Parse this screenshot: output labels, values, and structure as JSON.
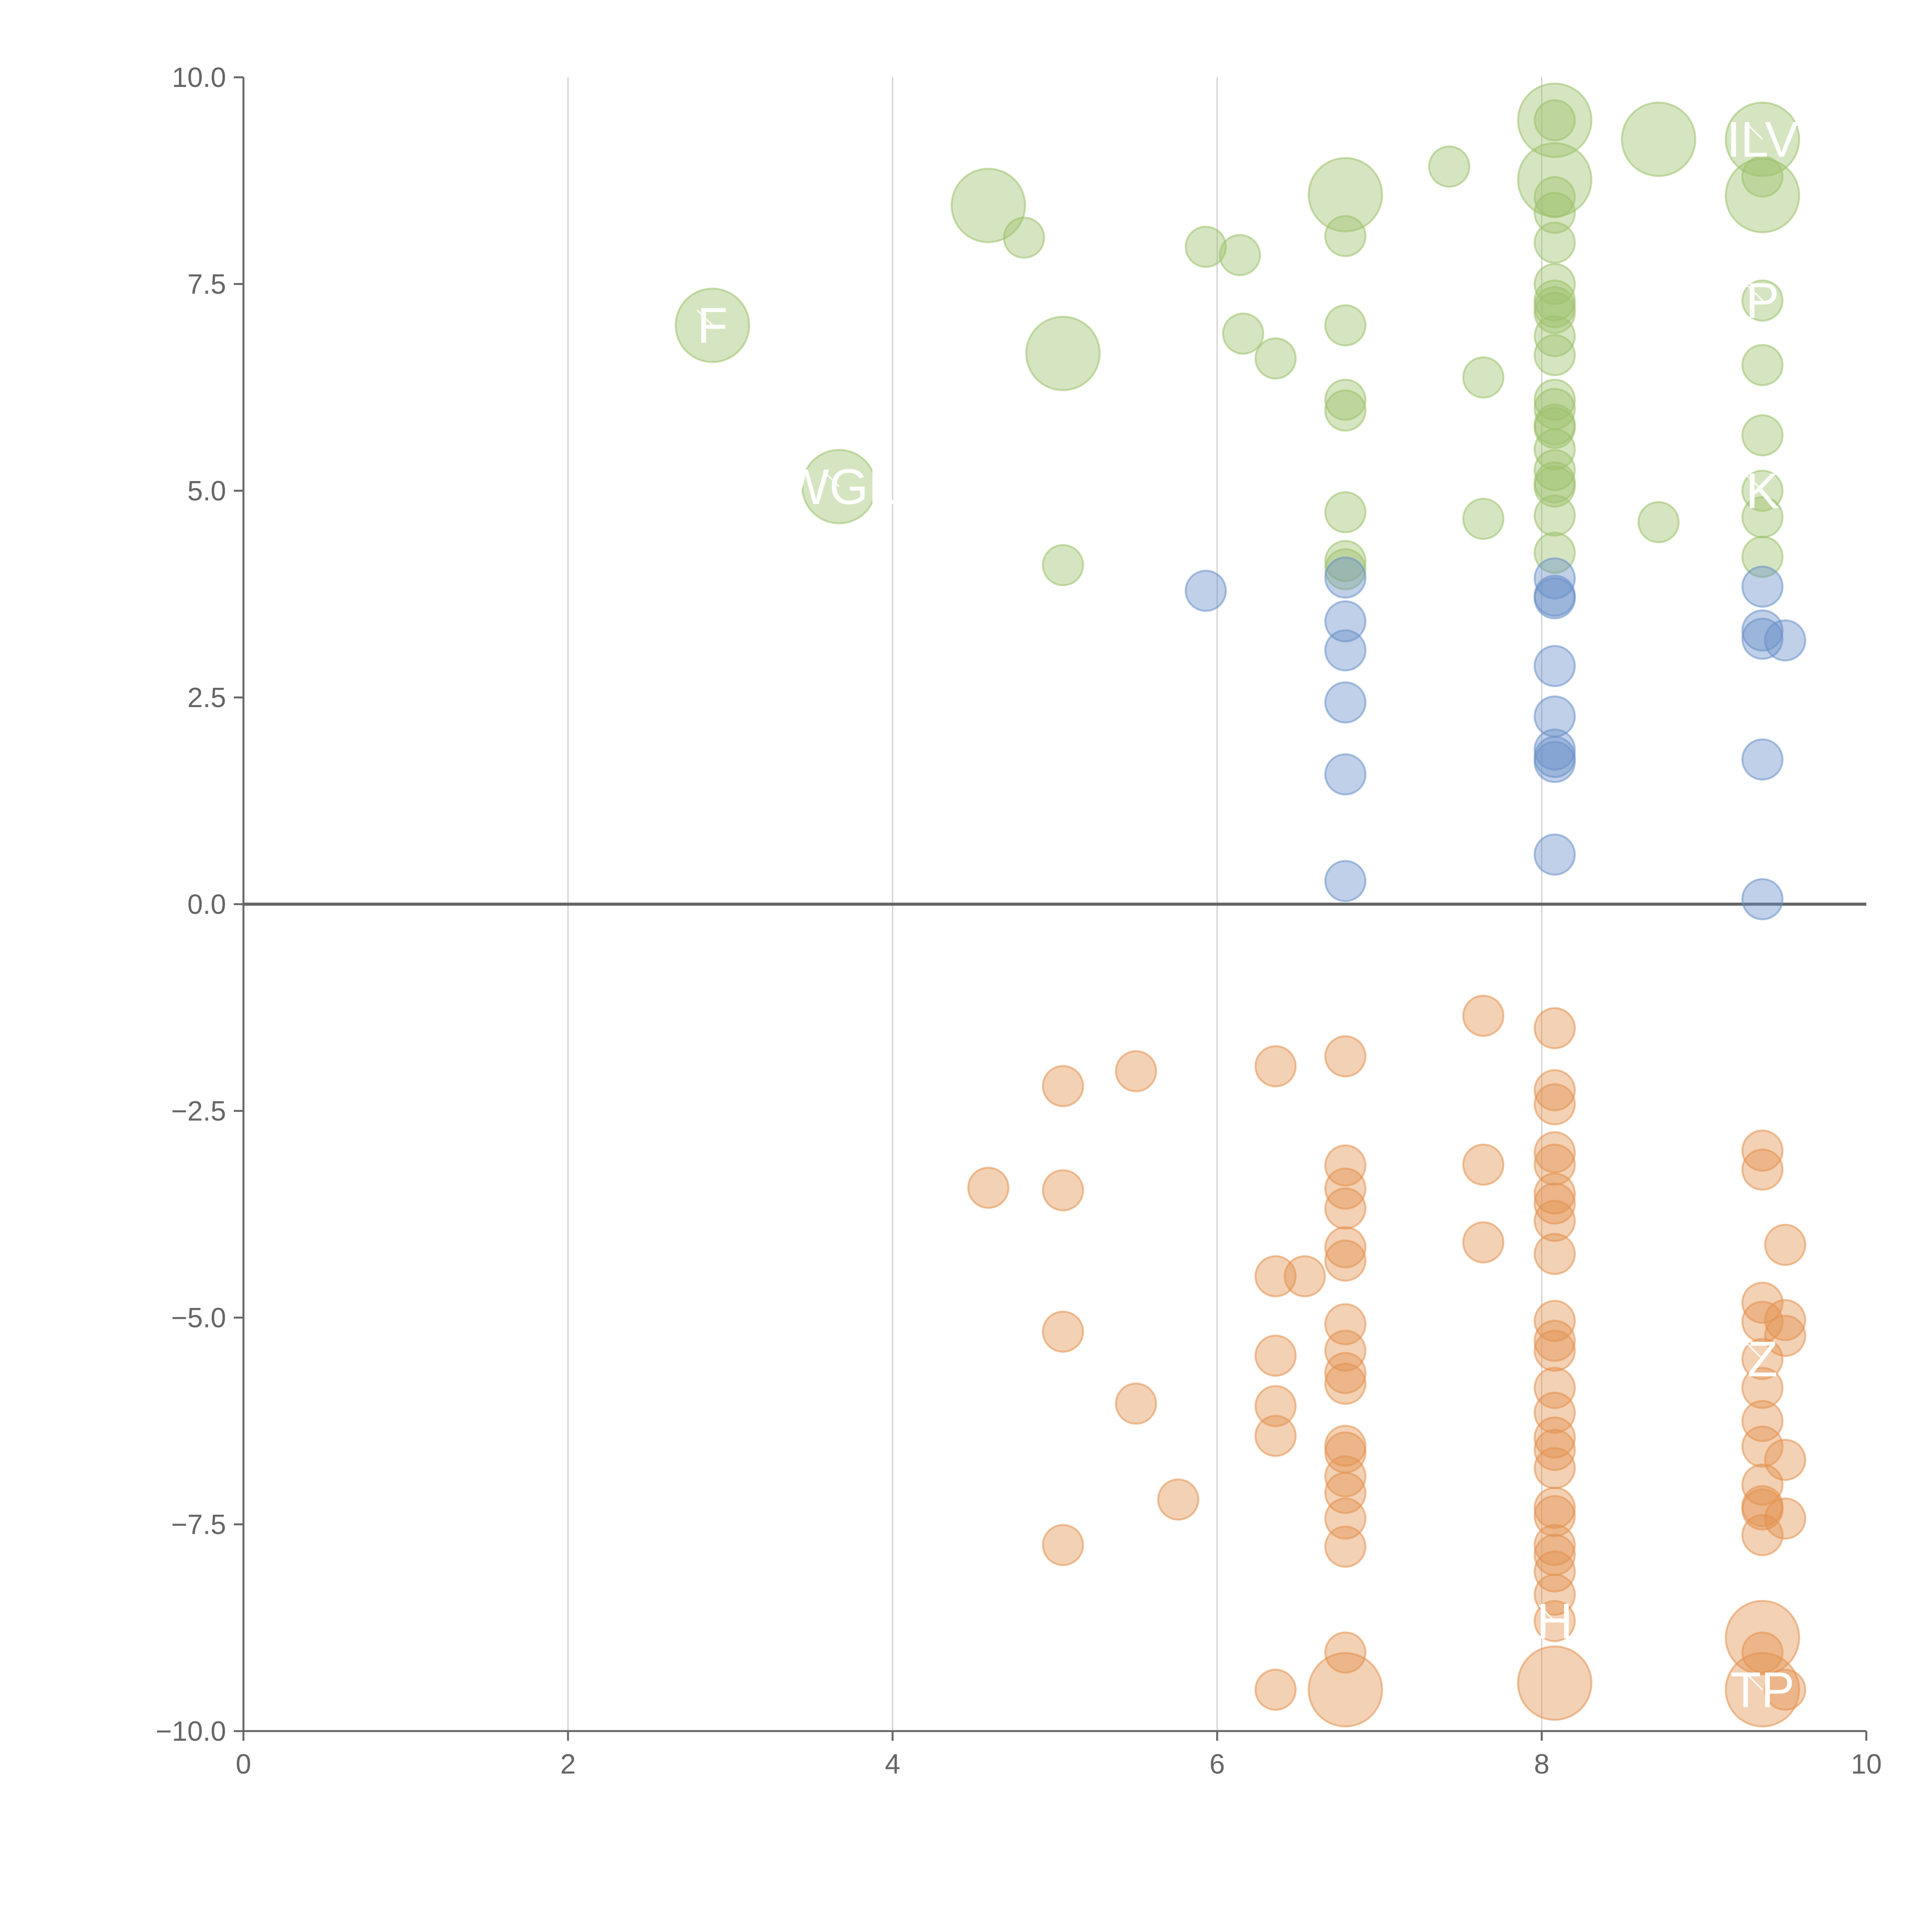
{
  "chart_data": {
    "type": "scatter",
    "title": "",
    "xlabel": "",
    "ylabel": "",
    "xlim": [
      0,
      10
    ],
    "ylim": [
      -10,
      10
    ],
    "grid": "vertical",
    "x_ticks": [
      "0",
      "2",
      "4",
      "6",
      "8",
      "10"
    ],
    "y_ticks": [
      "10.0",
      "7.5",
      "5.0",
      "2.5",
      "0.0",
      "−2.5",
      "−5.0",
      "−7.5",
      "−10.0"
    ],
    "series": [
      {
        "name": "green",
        "color": "#9dc16b",
        "points": [
          {
            "x": 2.89,
            "y": 7.0,
            "size": "large",
            "label": "F"
          },
          {
            "x": 3.67,
            "y": 5.05,
            "size": "large",
            "label": "WGL"
          },
          {
            "x": 4.59,
            "y": 8.45,
            "size": "large"
          },
          {
            "x": 4.81,
            "y": 8.06,
            "size": "small"
          },
          {
            "x": 5.05,
            "y": 6.66,
            "size": "large"
          },
          {
            "x": 5.05,
            "y": 4.1,
            "size": "small"
          },
          {
            "x": 5.93,
            "y": 7.95,
            "size": "small"
          },
          {
            "x": 6.14,
            "y": 7.85,
            "size": "small"
          },
          {
            "x": 6.16,
            "y": 6.9,
            "size": "small"
          },
          {
            "x": 6.36,
            "y": 6.6,
            "size": "small"
          },
          {
            "x": 6.79,
            "y": 8.58,
            "size": "large"
          },
          {
            "x": 6.79,
            "y": 8.08,
            "size": "small"
          },
          {
            "x": 6.79,
            "y": 7.0,
            "size": "small"
          },
          {
            "x": 6.79,
            "y": 6.1,
            "size": "small"
          },
          {
            "x": 6.79,
            "y": 5.97,
            "size": "small"
          },
          {
            "x": 6.79,
            "y": 4.74,
            "size": "small"
          },
          {
            "x": 6.79,
            "y": 4.15,
            "size": "small"
          },
          {
            "x": 6.79,
            "y": 4.05,
            "size": "small"
          },
          {
            "x": 7.43,
            "y": 8.92,
            "size": "small"
          },
          {
            "x": 7.64,
            "y": 6.37,
            "size": "small"
          },
          {
            "x": 7.64,
            "y": 4.66,
            "size": "small"
          },
          {
            "x": 8.08,
            "y": 9.48,
            "size": "large"
          },
          {
            "x": 8.08,
            "y": 9.48,
            "size": "small"
          },
          {
            "x": 8.08,
            "y": 8.76,
            "size": "large"
          },
          {
            "x": 8.08,
            "y": 8.55,
            "size": "small"
          },
          {
            "x": 8.08,
            "y": 8.36,
            "size": "small"
          },
          {
            "x": 8.08,
            "y": 8.0,
            "size": "small"
          },
          {
            "x": 8.08,
            "y": 7.5,
            "size": "small"
          },
          {
            "x": 8.08,
            "y": 7.3,
            "size": "small"
          },
          {
            "x": 8.08,
            "y": 7.22,
            "size": "small"
          },
          {
            "x": 8.08,
            "y": 7.15,
            "size": "small"
          },
          {
            "x": 8.08,
            "y": 6.87,
            "size": "small"
          },
          {
            "x": 8.08,
            "y": 6.64,
            "size": "small"
          },
          {
            "x": 8.08,
            "y": 6.1,
            "size": "small"
          },
          {
            "x": 8.08,
            "y": 5.99,
            "size": "small"
          },
          {
            "x": 8.08,
            "y": 5.8,
            "size": "small"
          },
          {
            "x": 8.08,
            "y": 5.76,
            "size": "small"
          },
          {
            "x": 8.08,
            "y": 5.5,
            "size": "small"
          },
          {
            "x": 8.08,
            "y": 5.25,
            "size": "small"
          },
          {
            "x": 8.08,
            "y": 5.1,
            "size": "small"
          },
          {
            "x": 8.08,
            "y": 5.05,
            "size": "small"
          },
          {
            "x": 8.08,
            "y": 4.7,
            "size": "small"
          },
          {
            "x": 8.08,
            "y": 4.25,
            "size": "small"
          },
          {
            "x": 8.72,
            "y": 9.25,
            "size": "large"
          },
          {
            "x": 8.72,
            "y": 4.62,
            "size": "small"
          },
          {
            "x": 9.36,
            "y": 9.25,
            "size": "large",
            "label": "ILV"
          },
          {
            "x": 9.36,
            "y": 8.8,
            "size": "small"
          },
          {
            "x": 9.36,
            "y": 8.57,
            "size": "large"
          },
          {
            "x": 9.36,
            "y": 7.3,
            "size": "small",
            "label": "P"
          },
          {
            "x": 9.36,
            "y": 6.52,
            "size": "small"
          },
          {
            "x": 9.36,
            "y": 5.67,
            "size": "small"
          },
          {
            "x": 9.36,
            "y": 5.0,
            "size": "small",
            "label": "K"
          },
          {
            "x": 9.36,
            "y": 4.68,
            "size": "small"
          },
          {
            "x": 9.36,
            "y": 4.2,
            "size": "small"
          }
        ]
      },
      {
        "name": "blue",
        "color": "#6a8fc9",
        "points": [
          {
            "x": 5.93,
            "y": 3.79,
            "size": "small"
          },
          {
            "x": 6.79,
            "y": 3.95,
            "size": "small"
          },
          {
            "x": 6.79,
            "y": 3.42,
            "size": "small"
          },
          {
            "x": 6.79,
            "y": 3.07,
            "size": "small"
          },
          {
            "x": 6.79,
            "y": 2.44,
            "size": "small"
          },
          {
            "x": 6.79,
            "y": 1.57,
            "size": "small"
          },
          {
            "x": 6.79,
            "y": 0.28,
            "size": "small"
          },
          {
            "x": 8.08,
            "y": 3.94,
            "size": "small"
          },
          {
            "x": 8.08,
            "y": 3.73,
            "size": "small"
          },
          {
            "x": 8.08,
            "y": 3.7,
            "size": "small"
          },
          {
            "x": 8.08,
            "y": 2.88,
            "size": "small"
          },
          {
            "x": 8.08,
            "y": 2.27,
            "size": "small"
          },
          {
            "x": 8.08,
            "y": 1.87,
            "size": "small"
          },
          {
            "x": 8.08,
            "y": 1.78,
            "size": "small"
          },
          {
            "x": 8.08,
            "y": 1.72,
            "size": "small"
          },
          {
            "x": 8.08,
            "y": 0.6,
            "size": "small"
          },
          {
            "x": 9.36,
            "y": 3.84,
            "size": "small"
          },
          {
            "x": 9.36,
            "y": 3.31,
            "size": "small"
          },
          {
            "x": 9.36,
            "y": 3.21,
            "size": "small"
          },
          {
            "x": 9.5,
            "y": 3.19,
            "size": "small"
          },
          {
            "x": 9.36,
            "y": 1.75,
            "size": "small"
          },
          {
            "x": 9.36,
            "y": 0.06,
            "size": "small"
          }
        ]
      },
      {
        "name": "orange",
        "color": "#e3924f",
        "points": [
          {
            "x": 4.59,
            "y": -3.43,
            "size": "small"
          },
          {
            "x": 5.05,
            "y": -2.2,
            "size": "small"
          },
          {
            "x": 5.05,
            "y": -3.46,
            "size": "small"
          },
          {
            "x": 5.05,
            "y": -5.17,
            "size": "small"
          },
          {
            "x": 5.05,
            "y": -7.75,
            "size": "small"
          },
          {
            "x": 5.5,
            "y": -2.02,
            "size": "small"
          },
          {
            "x": 5.5,
            "y": -6.04,
            "size": "small"
          },
          {
            "x": 5.76,
            "y": -7.2,
            "size": "small"
          },
          {
            "x": 6.36,
            "y": -1.96,
            "size": "small"
          },
          {
            "x": 6.36,
            "y": -4.5,
            "size": "small"
          },
          {
            "x": 6.36,
            "y": -5.46,
            "size": "small"
          },
          {
            "x": 6.36,
            "y": -6.07,
            "size": "small"
          },
          {
            "x": 6.36,
            "y": -6.43,
            "size": "small"
          },
          {
            "x": 6.36,
            "y": -9.5,
            "size": "small"
          },
          {
            "x": 6.54,
            "y": -4.5,
            "size": "small"
          },
          {
            "x": 6.79,
            "y": -1.84,
            "size": "small"
          },
          {
            "x": 6.79,
            "y": -3.16,
            "size": "small"
          },
          {
            "x": 6.79,
            "y": -3.44,
            "size": "small"
          },
          {
            "x": 6.79,
            "y": -3.68,
            "size": "small"
          },
          {
            "x": 6.79,
            "y": -4.15,
            "size": "small"
          },
          {
            "x": 6.79,
            "y": -4.31,
            "size": "small"
          },
          {
            "x": 6.79,
            "y": -5.08,
            "size": "small"
          },
          {
            "x": 6.79,
            "y": -5.4,
            "size": "small"
          },
          {
            "x": 6.79,
            "y": -5.67,
            "size": "small"
          },
          {
            "x": 6.79,
            "y": -5.8,
            "size": "small"
          },
          {
            "x": 6.79,
            "y": -6.55,
            "size": "small"
          },
          {
            "x": 6.79,
            "y": -6.63,
            "size": "small"
          },
          {
            "x": 6.79,
            "y": -6.92,
            "size": "small"
          },
          {
            "x": 6.79,
            "y": -7.12,
            "size": "small"
          },
          {
            "x": 6.79,
            "y": -7.43,
            "size": "small"
          },
          {
            "x": 6.79,
            "y": -7.77,
            "size": "small"
          },
          {
            "x": 6.79,
            "y": -9.05,
            "size": "small"
          },
          {
            "x": 6.79,
            "y": -9.5,
            "size": "large"
          },
          {
            "x": 7.64,
            "y": -1.35,
            "size": "small"
          },
          {
            "x": 7.64,
            "y": -3.15,
            "size": "small"
          },
          {
            "x": 7.64,
            "y": -4.09,
            "size": "small"
          },
          {
            "x": 8.08,
            "y": -1.5,
            "size": "small"
          },
          {
            "x": 8.08,
            "y": -2.25,
            "size": "small"
          },
          {
            "x": 8.08,
            "y": -2.42,
            "size": "small"
          },
          {
            "x": 8.08,
            "y": -3.0,
            "size": "small"
          },
          {
            "x": 8.08,
            "y": -3.15,
            "size": "small"
          },
          {
            "x": 8.08,
            "y": -3.5,
            "size": "small"
          },
          {
            "x": 8.08,
            "y": -3.62,
            "size": "small"
          },
          {
            "x": 8.08,
            "y": -3.83,
            "size": "small"
          },
          {
            "x": 8.08,
            "y": -4.23,
            "size": "small"
          },
          {
            "x": 8.08,
            "y": -5.04,
            "size": "small"
          },
          {
            "x": 8.08,
            "y": -5.28,
            "size": "small"
          },
          {
            "x": 8.08,
            "y": -5.4,
            "size": "small"
          },
          {
            "x": 8.08,
            "y": -5.85,
            "size": "small"
          },
          {
            "x": 8.08,
            "y": -6.15,
            "size": "small"
          },
          {
            "x": 8.08,
            "y": -6.45,
            "size": "small"
          },
          {
            "x": 8.08,
            "y": -6.6,
            "size": "small"
          },
          {
            "x": 8.08,
            "y": -6.82,
            "size": "small"
          },
          {
            "x": 8.08,
            "y": -7.3,
            "size": "small"
          },
          {
            "x": 8.08,
            "y": -7.4,
            "size": "small"
          },
          {
            "x": 8.08,
            "y": -7.75,
            "size": "small"
          },
          {
            "x": 8.08,
            "y": -7.87,
            "size": "small"
          },
          {
            "x": 8.08,
            "y": -8.07,
            "size": "small"
          },
          {
            "x": 8.08,
            "y": -8.35,
            "size": "small"
          },
          {
            "x": 8.08,
            "y": -8.67,
            "size": "small",
            "label": "H"
          },
          {
            "x": 8.08,
            "y": -9.42,
            "size": "large"
          },
          {
            "x": 9.36,
            "y": -2.98,
            "size": "small"
          },
          {
            "x": 9.36,
            "y": -3.21,
            "size": "small"
          },
          {
            "x": 9.5,
            "y": -4.12,
            "size": "small"
          },
          {
            "x": 9.36,
            "y": -4.82,
            "size": "small"
          },
          {
            "x": 9.36,
            "y": -5.05,
            "size": "small"
          },
          {
            "x": 9.5,
            "y": -5.03,
            "size": "small"
          },
          {
            "x": 9.5,
            "y": -5.22,
            "size": "small"
          },
          {
            "x": 9.36,
            "y": -5.5,
            "size": "small",
            "label": "Z"
          },
          {
            "x": 9.36,
            "y": -5.85,
            "size": "small"
          },
          {
            "x": 9.36,
            "y": -6.25,
            "size": "small"
          },
          {
            "x": 9.36,
            "y": -6.56,
            "size": "small"
          },
          {
            "x": 9.5,
            "y": -6.72,
            "size": "small"
          },
          {
            "x": 9.36,
            "y": -7.02,
            "size": "small"
          },
          {
            "x": 9.36,
            "y": -7.28,
            "size": "small"
          },
          {
            "x": 9.36,
            "y": -7.32,
            "size": "small"
          },
          {
            "x": 9.5,
            "y": -7.43,
            "size": "small"
          },
          {
            "x": 9.36,
            "y": -7.63,
            "size": "small"
          },
          {
            "x": 9.36,
            "y": -8.87,
            "size": "large"
          },
          {
            "x": 9.36,
            "y": -9.05,
            "size": "small"
          },
          {
            "x": 9.36,
            "y": -9.5,
            "size": "large",
            "label": "TP"
          },
          {
            "x": 9.5,
            "y": -9.5,
            "size": "small"
          }
        ]
      }
    ]
  }
}
